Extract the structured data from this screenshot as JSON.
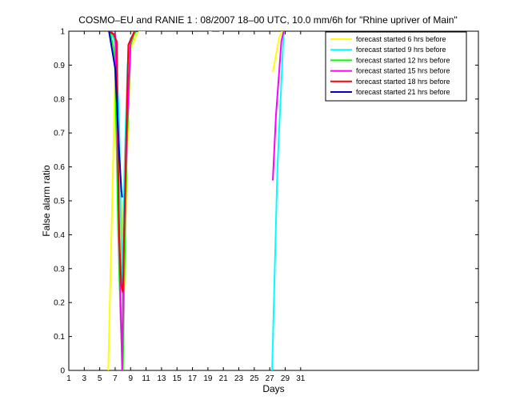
{
  "chart_data": {
    "type": "line",
    "title": "COSMO–EU and RANIE 1 : 08/2007 18–00 UTC, 10.0 mm/6h for \"Rhine upriver of Main\"",
    "xlabel": "Days",
    "ylabel": "False alarm ratio",
    "xlim": [
      1,
      54
    ],
    "ylim": [
      0,
      1
    ],
    "xticks": [
      1,
      3,
      5,
      7,
      9,
      11,
      13,
      15,
      17,
      19,
      21,
      23,
      25,
      27,
      29,
      31
    ],
    "yticks": [
      0,
      0.1,
      0.2,
      0.3,
      0.4,
      0.5,
      0.6,
      0.7,
      0.8,
      0.9,
      1
    ],
    "ytick_labels": [
      "0",
      "0.1",
      "0.2",
      "0.3",
      "0.4",
      "0.5",
      "0.6",
      "0.7",
      "0.8",
      "0.9",
      "1"
    ],
    "legend_position": "top-right",
    "grid": false,
    "series": [
      {
        "name": "forecast started 6 hrs before",
        "color": "#ffff00",
        "segments": [
          [
            [
              6.1,
              0
            ],
            [
              7.0,
              0.88
            ],
            [
              7.4,
              0.75
            ],
            [
              7.8,
              0.3
            ],
            [
              8.0,
              0.5
            ],
            [
              8.2,
              0.25
            ],
            [
              8.5,
              0.6
            ],
            [
              9.0,
              0.95
            ],
            [
              10.0,
              1
            ],
            [
              11.0,
              1
            ]
          ],
          [
            [
              19.0,
              1
            ],
            [
              19.5,
              1
            ]
          ],
          [
            [
              20.5,
              1
            ],
            [
              21.0,
              1
            ]
          ],
          [
            [
              27.4,
              0.88
            ],
            [
              28.2,
              0.98
            ],
            [
              28.6,
              1
            ]
          ]
        ]
      },
      {
        "name": "forecast started 9 hrs before",
        "color": "#00ffff",
        "segments": [
          [
            [
              6.3,
              1
            ],
            [
              7.0,
              0.97
            ],
            [
              7.5,
              0.75
            ],
            [
              7.9,
              0.25
            ],
            [
              8.2,
              0.6
            ],
            [
              8.6,
              0.9
            ],
            [
              9.0,
              0.98
            ],
            [
              9.8,
              1
            ]
          ],
          [
            [
              27.3,
              0
            ],
            [
              28.0,
              0.6
            ],
            [
              28.5,
              0.85
            ],
            [
              28.8,
              1
            ]
          ]
        ]
      },
      {
        "name": "forecast started 12 hrs before",
        "color": "#00ff00",
        "segments": [
          [
            [
              6.3,
              1
            ],
            [
              6.8,
              0.95
            ],
            [
              7.0,
              0.88
            ],
            [
              7.4,
              0.4
            ],
            [
              7.7,
              0.15
            ],
            [
              8.0,
              0
            ],
            [
              8.2,
              0.3
            ],
            [
              8.5,
              0.65
            ],
            [
              9.0,
              0.96
            ],
            [
              9.6,
              1
            ]
          ]
        ]
      },
      {
        "name": "forecast started 15 hrs before",
        "color": "#ff00ff",
        "segments": [
          [
            [
              6.2,
              1
            ],
            [
              7.0,
              0.99
            ],
            [
              7.3,
              0.7
            ],
            [
              7.6,
              0.3
            ],
            [
              7.9,
              0
            ],
            [
              8.1,
              0.35
            ],
            [
              8.5,
              0.7
            ],
            [
              9.0,
              0.97
            ],
            [
              9.5,
              1
            ]
          ],
          [
            [
              27.4,
              0.56
            ],
            [
              27.8,
              0.75
            ],
            [
              28.5,
              0.97
            ],
            [
              28.8,
              1
            ]
          ]
        ]
      },
      {
        "name": "forecast started 18 hrs before",
        "color": "#ff0000",
        "segments": [
          [
            [
              6.2,
              1
            ],
            [
              6.8,
              0.99
            ],
            [
              7.2,
              0.97
            ],
            [
              7.5,
              0.4
            ],
            [
              7.8,
              0.25
            ],
            [
              8.0,
              0.23
            ],
            [
              8.3,
              0.55
            ],
            [
              8.7,
              0.96
            ],
            [
              9.5,
              1
            ],
            [
              10.0,
              1
            ]
          ]
        ]
      },
      {
        "name": "forecast started 21 hrs before",
        "color": "#0000cc",
        "segments": [
          [
            [
              6.2,
              1
            ],
            [
              7.0,
              0.89
            ],
            [
              7.5,
              0.65
            ],
            [
              7.8,
              0.53
            ],
            [
              7.9,
              0.51
            ]
          ]
        ]
      }
    ]
  }
}
